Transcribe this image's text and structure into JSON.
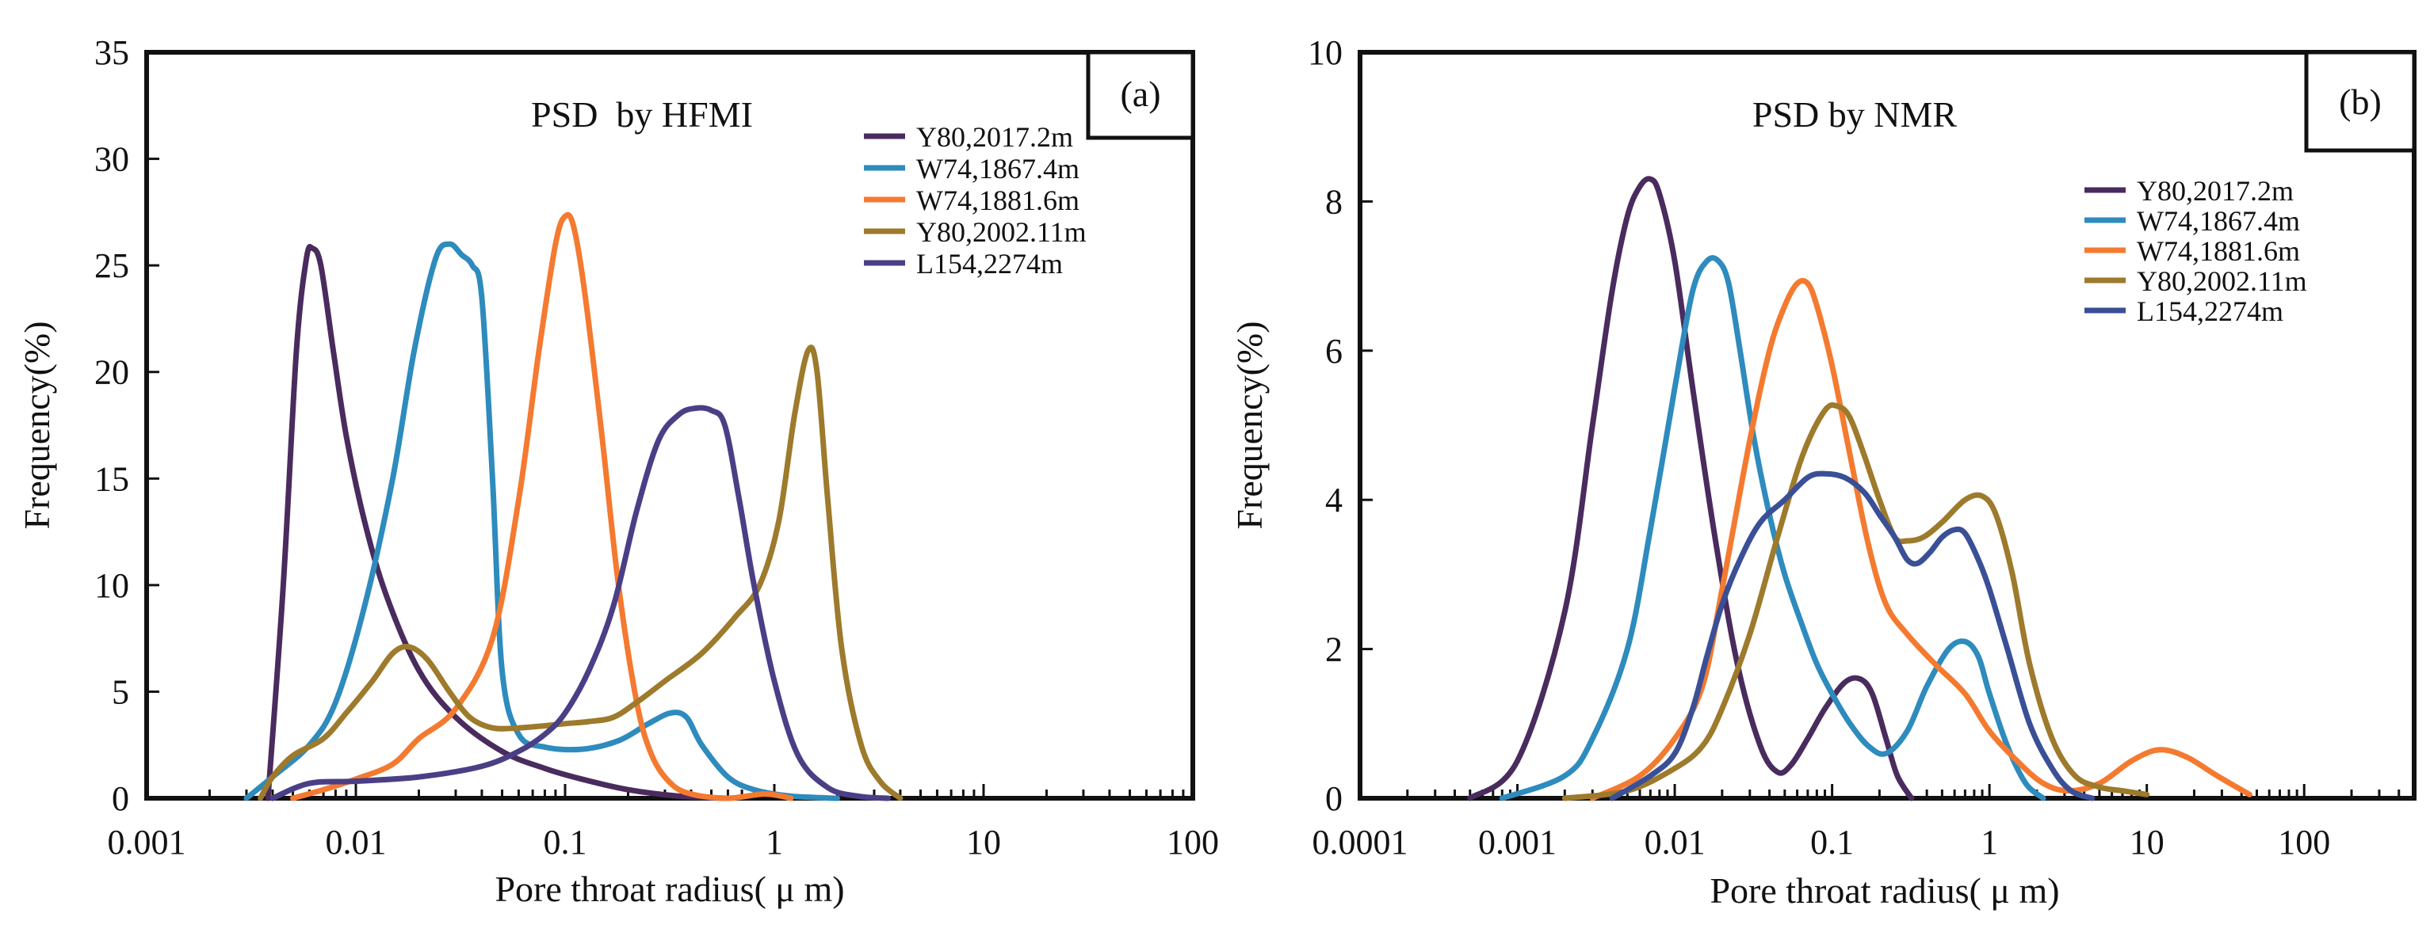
{
  "chart_data": [
    {
      "type": "line",
      "panel_label": "(a)",
      "title": "PSD  by HFMI",
      "xlabel": "Pore throat radius( μ m)",
      "ylabel": "Frequency(%)",
      "xscale": "log",
      "xlim": [
        0.001,
        100
      ],
      "ylim": [
        0,
        35
      ],
      "xticks": [
        0.001,
        0.01,
        0.1,
        1,
        10,
        100
      ],
      "xtick_labels": [
        "0.001",
        "0.01",
        "0.1",
        "1",
        "10",
        "100"
      ],
      "yticks": [
        0,
        5,
        10,
        15,
        20,
        25,
        30,
        35
      ],
      "ytick_labels": [
        "0",
        "5",
        "10",
        "15",
        "20",
        "25",
        "30",
        "35"
      ],
      "legend_position": "top-right",
      "series": [
        {
          "name": "Y80,2017.2m",
          "color": "#4a2b5e",
          "x": [
            0.0038,
            0.0045,
            0.0052,
            0.0058,
            0.0062,
            0.0068,
            0.0078,
            0.009,
            0.011,
            0.014,
            0.02,
            0.03,
            0.05,
            0.08,
            0.12,
            0.2,
            0.35,
            0.6
          ],
          "y": [
            0,
            10,
            21,
            25.3,
            25.8,
            25,
            21,
            17,
            13,
            9.5,
            6,
            3.8,
            2.2,
            1.4,
            0.9,
            0.4,
            0.1,
            0
          ]
        },
        {
          "name": "W74,1867.4m",
          "color": "#2e8bbd",
          "x": [
            0.003,
            0.004,
            0.006,
            0.008,
            0.011,
            0.015,
            0.019,
            0.024,
            0.028,
            0.032,
            0.036,
            0.04,
            0.045,
            0.05,
            0.06,
            0.08,
            0.12,
            0.18,
            0.25,
            0.32,
            0.38,
            0.45,
            0.6,
            0.8,
            1.2,
            2
          ],
          "y": [
            0,
            1,
            2.5,
            4.5,
            9,
            15,
            21,
            25.3,
            26,
            25.5,
            25,
            23.5,
            15,
            6,
            3,
            2.4,
            2.3,
            2.7,
            3.5,
            4,
            3.8,
            2.5,
            1,
            0.4,
            0.1,
            0
          ]
        },
        {
          "name": "W74,1881.6m",
          "color": "#f47a30",
          "x": [
            0.005,
            0.007,
            0.01,
            0.015,
            0.02,
            0.03,
            0.045,
            0.06,
            0.075,
            0.09,
            0.1,
            0.11,
            0.125,
            0.15,
            0.18,
            0.22,
            0.26,
            0.32,
            0.4,
            0.6,
            0.9,
            1.2
          ],
          "y": [
            0,
            0.4,
            0.9,
            1.6,
            2.8,
            4.2,
            7.5,
            14,
            21,
            26,
            27.3,
            26.8,
            23.5,
            17,
            10,
            4.5,
            2,
            0.7,
            0.2,
            0,
            0.2,
            0
          ]
        },
        {
          "name": "Y80,2002.11m",
          "color": "#9d7a2c",
          "x": [
            0.0035,
            0.004,
            0.005,
            0.007,
            0.009,
            0.012,
            0.015,
            0.018,
            0.022,
            0.028,
            0.035,
            0.045,
            0.06,
            0.08,
            0.1,
            0.13,
            0.17,
            0.22,
            0.3,
            0.45,
            0.65,
            0.85,
            1.05,
            1.25,
            1.45,
            1.6,
            1.8,
            2.1,
            2.6,
            3.2,
            4
          ],
          "y": [
            0,
            1,
            2,
            2.8,
            4,
            5.5,
            6.8,
            7.1,
            6.5,
            5,
            3.8,
            3.3,
            3.3,
            3.4,
            3.5,
            3.6,
            3.8,
            4.5,
            5.5,
            6.8,
            8.5,
            10,
            13,
            18,
            21,
            20,
            14,
            7,
            2.5,
            0.8,
            0
          ]
        },
        {
          "name": "L154,2274m",
          "color": "#4a3f86",
          "x": [
            0.004,
            0.006,
            0.01,
            0.02,
            0.04,
            0.06,
            0.08,
            0.1,
            0.13,
            0.17,
            0.22,
            0.28,
            0.35,
            0.42,
            0.5,
            0.58,
            0.68,
            0.8,
            1,
            1.3,
            1.8,
            2.5,
            3.5
          ],
          "y": [
            0,
            0.7,
            0.8,
            1,
            1.5,
            2.2,
            3,
            4,
            6,
            9,
            13.5,
            16.8,
            18,
            18.3,
            18.2,
            17.5,
            14,
            10,
            5.5,
            2,
            0.5,
            0.1,
            0
          ]
        }
      ]
    },
    {
      "type": "line",
      "panel_label": "(b)",
      "title": "PSD by NMR",
      "xlabel": "Pore throat radius( μ m)",
      "ylabel": "Frequency(%)",
      "xscale": "log",
      "xlim": [
        0.0001,
        500
      ],
      "ylim": [
        0,
        10
      ],
      "xticks": [
        0.0001,
        0.001,
        0.01,
        0.1,
        1,
        10,
        100
      ],
      "xtick_labels": [
        "0.0001",
        "0.001",
        "0.01",
        "0.1",
        "1",
        "10",
        "100"
      ],
      "yticks": [
        0,
        2,
        4,
        6,
        8,
        10
      ],
      "ytick_labels": [
        "0",
        "2",
        "4",
        "6",
        "8",
        "10"
      ],
      "legend_position": "top-right",
      "series": [
        {
          "name": "Y80,2017.2m",
          "color": "#4a2b5e",
          "x": [
            0.0005,
            0.001,
            0.002,
            0.003,
            0.004,
            0.005,
            0.006,
            0.007,
            0.008,
            0.01,
            0.013,
            0.018,
            0.025,
            0.035,
            0.045,
            0.055,
            0.07,
            0.09,
            0.12,
            0.15,
            0.18,
            0.22,
            0.26,
            0.32
          ],
          "y": [
            0,
            0.5,
            2.5,
            5,
            6.8,
            7.8,
            8.2,
            8.3,
            8.1,
            7.2,
            5.5,
            3.5,
            1.8,
            0.7,
            0.35,
            0.45,
            0.8,
            1.2,
            1.55,
            1.6,
            1.4,
            0.8,
            0.3,
            0
          ]
        },
        {
          "name": "W74,1867.4m",
          "color": "#2e8bbd",
          "x": [
            0.0008,
            0.002,
            0.003,
            0.005,
            0.007,
            0.01,
            0.013,
            0.016,
            0.019,
            0.022,
            0.026,
            0.032,
            0.04,
            0.05,
            0.065,
            0.08,
            0.1,
            0.13,
            0.17,
            0.22,
            0.3,
            0.4,
            0.55,
            0.7,
            0.85,
            1,
            1.3,
            1.7,
            2.2
          ],
          "y": [
            0,
            0.3,
            0.8,
            2,
            3.6,
            5.5,
            6.8,
            7.2,
            7.2,
            6.9,
            6,
            4.8,
            3.8,
            3,
            2.3,
            1.8,
            1.4,
            1,
            0.7,
            0.6,
            0.9,
            1.5,
            2,
            2.1,
            1.9,
            1.4,
            0.7,
            0.2,
            0
          ]
        },
        {
          "name": "W74,1881.6m",
          "color": "#f47a30",
          "x": [
            0.003,
            0.006,
            0.01,
            0.015,
            0.02,
            0.03,
            0.04,
            0.05,
            0.06,
            0.07,
            0.08,
            0.1,
            0.13,
            0.17,
            0.22,
            0.3,
            0.45,
            0.7,
            1,
            1.5,
            2.2,
            3.2,
            5,
            8,
            12,
            18,
            28,
            45
          ],
          "y": [
            0,
            0.3,
            0.8,
            1.5,
            2.8,
            4.8,
            6,
            6.6,
            6.9,
            6.9,
            6.6,
            5.8,
            4.6,
            3.4,
            2.6,
            2.2,
            1.8,
            1.4,
            0.9,
            0.5,
            0.2,
            0.1,
            0.2,
            0.5,
            0.65,
            0.55,
            0.3,
            0.05
          ]
        },
        {
          "name": "Y80,2002.11m",
          "color": "#9d7a2c",
          "x": [
            0.002,
            0.005,
            0.01,
            0.015,
            0.02,
            0.03,
            0.045,
            0.065,
            0.09,
            0.11,
            0.13,
            0.16,
            0.2,
            0.25,
            0.3,
            0.38,
            0.5,
            0.7,
            0.9,
            1.1,
            1.4,
            1.8,
            2.5,
            3.5,
            5,
            7,
            10
          ],
          "y": [
            0,
            0.1,
            0.4,
            0.7,
            1.2,
            2.2,
            3.5,
            4.6,
            5.2,
            5.25,
            5.1,
            4.6,
            4,
            3.5,
            3.45,
            3.5,
            3.7,
            4,
            4.05,
            3.8,
            3,
            1.8,
            0.8,
            0.3,
            0.15,
            0.1,
            0.05
          ]
        },
        {
          "name": "L154,2274m",
          "color": "#3a4f95",
          "x": [
            0.004,
            0.007,
            0.01,
            0.013,
            0.016,
            0.02,
            0.026,
            0.035,
            0.05,
            0.07,
            0.09,
            0.12,
            0.16,
            0.2,
            0.25,
            0.3,
            0.35,
            0.42,
            0.5,
            0.6,
            0.7,
            0.85,
            1,
            1.3,
            1.8,
            2.5,
            3.3,
            4.5
          ],
          "y": [
            0,
            0.3,
            0.6,
            1.2,
            1.9,
            2.6,
            3.2,
            3.7,
            4,
            4.3,
            4.35,
            4.3,
            4.1,
            3.8,
            3.5,
            3.2,
            3.15,
            3.3,
            3.5,
            3.6,
            3.55,
            3.2,
            2.8,
            2,
            1,
            0.4,
            0.1,
            0
          ]
        }
      ]
    }
  ]
}
